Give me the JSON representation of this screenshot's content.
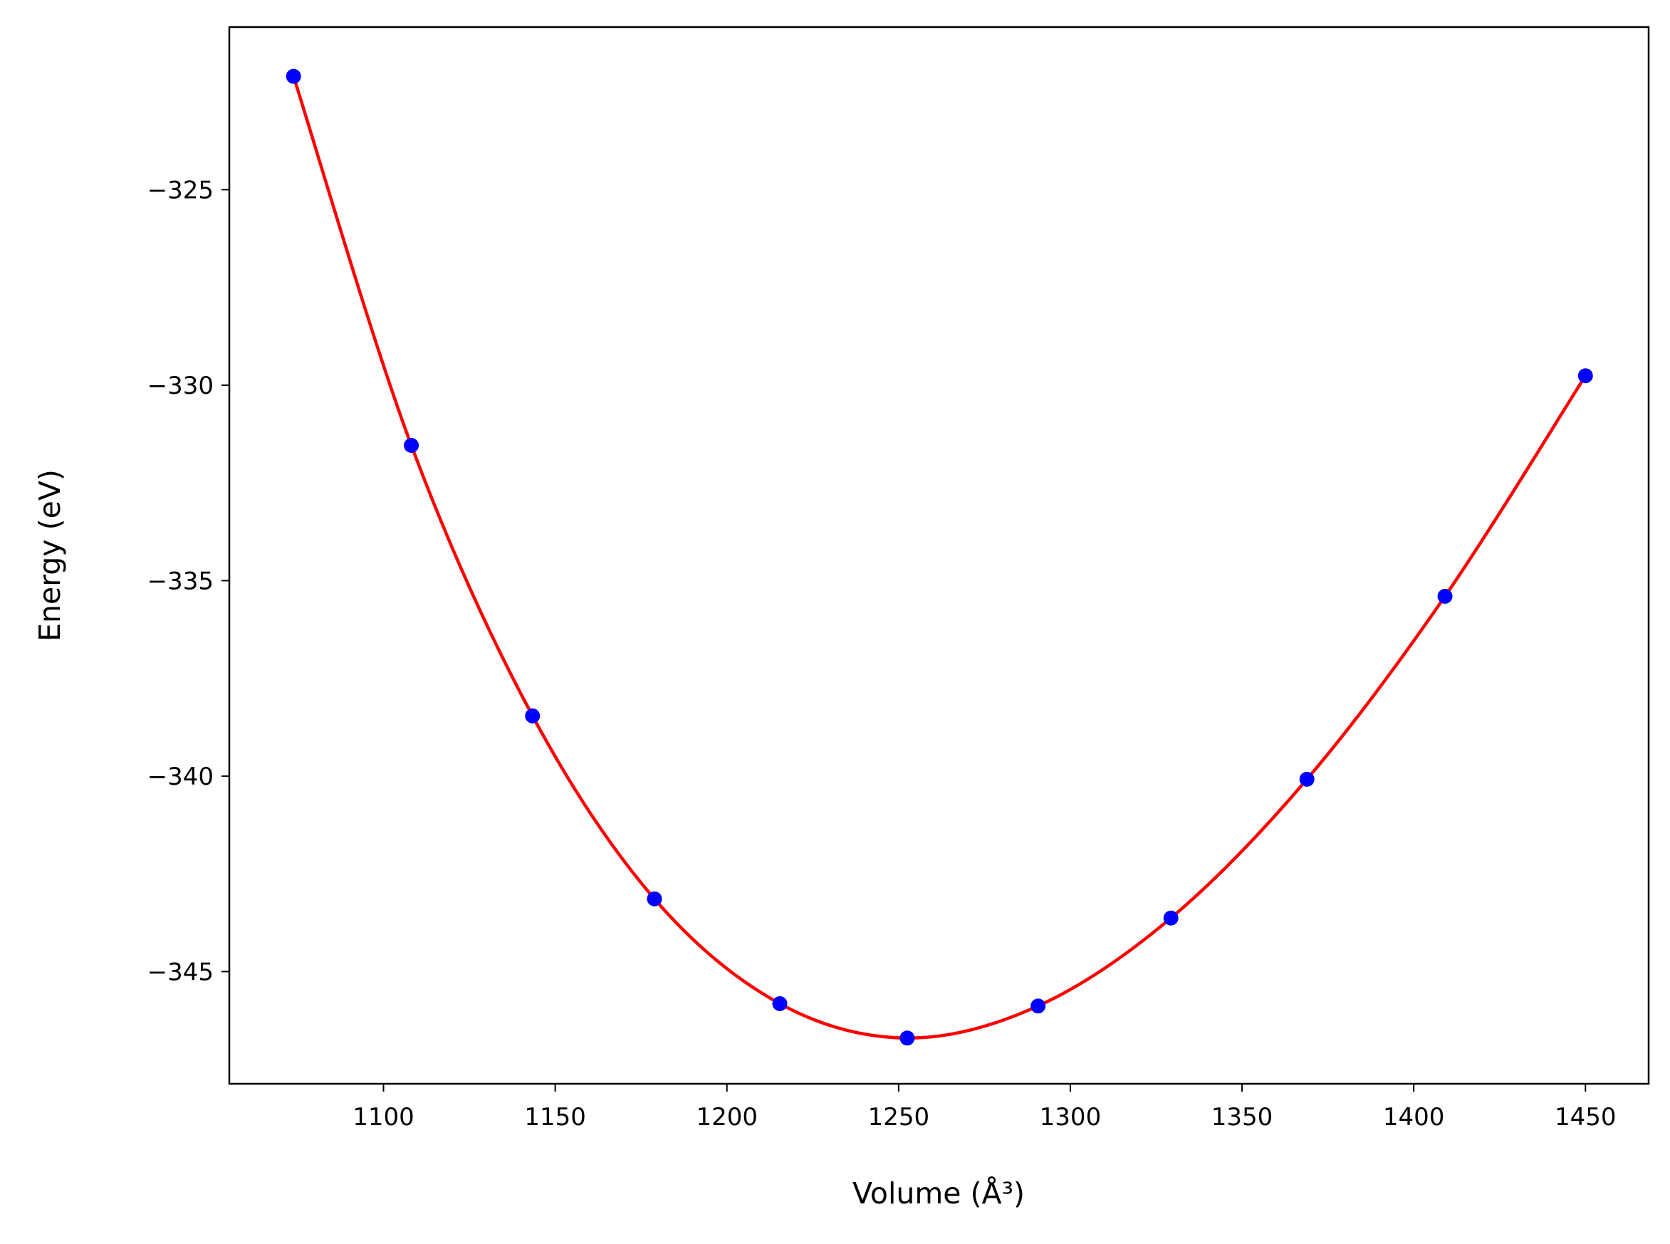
{
  "chart_data": {
    "type": "line",
    "title": "",
    "xlabel": "Volume (Å³)",
    "ylabel": "Energy (eV)",
    "xlim": [
      1055.1,
      1468.4
    ],
    "ylim": [
      -347.87,
      -320.84
    ],
    "grid": false,
    "xticks": [
      1100,
      1150,
      1200,
      1250,
      1300,
      1350,
      1400,
      1450
    ],
    "xtick_labels": [
      "1100",
      "1150",
      "1200",
      "1250",
      "1300",
      "1350",
      "1400",
      "1450"
    ],
    "yticks": [
      -325,
      -330,
      -335,
      -340,
      -345
    ],
    "ytick_labels": [
      "−325",
      "−330",
      "−335",
      "−340",
      "−345"
    ],
    "series": [
      {
        "name": "data points",
        "style": "markers",
        "color": "#0000ff",
        "x": [
          1073.8,
          1108.1,
          1143.4,
          1178.9,
          1215.4,
          1252.5,
          1290.6,
          1329.3,
          1368.9,
          1409.1,
          1450.0
        ],
        "y": [
          -322.1,
          -331.54,
          -338.46,
          -343.14,
          -345.82,
          -346.7,
          -345.88,
          -343.63,
          -340.08,
          -335.4,
          -329.76
        ]
      },
      {
        "name": "fit",
        "style": "line",
        "color": "#ff0000",
        "x": [
          1073.8,
          1108.1,
          1143.4,
          1178.9,
          1215.4,
          1252.5,
          1290.6,
          1329.3,
          1368.9,
          1409.1,
          1450.0
        ],
        "y": [
          -322.1,
          -331.54,
          -338.46,
          -343.14,
          -345.82,
          -346.7,
          -345.88,
          -343.63,
          -340.08,
          -335.4,
          -329.76
        ]
      }
    ]
  }
}
